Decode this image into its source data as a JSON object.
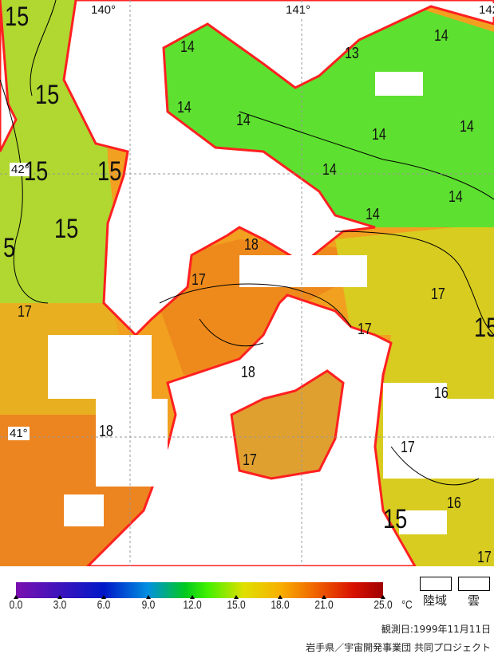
{
  "map": {
    "longitude_labels": [
      "140°",
      "141°",
      "142"
    ],
    "latitude_labels": [
      "42°",
      "41°"
    ],
    "contour_labels": [
      "15",
      "15",
      "15",
      "15",
      "15",
      "5",
      "17",
      "18",
      "17",
      "17",
      "18",
      "18",
      "17",
      "14",
      "14",
      "13",
      "14",
      "14",
      "14",
      "14",
      "14",
      "14",
      "14",
      "17",
      "15",
      "16",
      "17",
      "16",
      "15",
      "17"
    ],
    "colors": {
      "land_and_cloud": "#ffffff",
      "coastline": "#ff2020",
      "contour": "#000000"
    }
  },
  "legend": {
    "ticks": [
      "0.0",
      "3.0",
      "6.0",
      "9.0",
      "12.0",
      "15.0",
      "18.0",
      "21.0",
      "25.0"
    ],
    "unit": "°C",
    "range": [
      0,
      25
    ],
    "land_label": "陸域",
    "cloud_label": "雲"
  },
  "footer": {
    "observation_date": "観測日:1999年11月11日",
    "credit": "岩手県／宇宙開発事業団 共同プロジェクト"
  }
}
